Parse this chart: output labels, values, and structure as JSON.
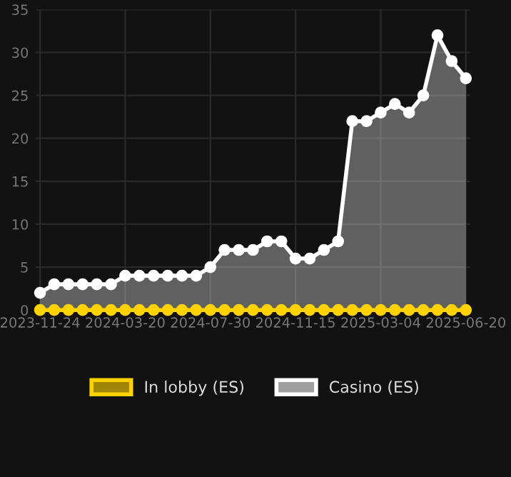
{
  "chart_data": {
    "type": "area",
    "categories": [
      "2023-11-24",
      null,
      null,
      null,
      null,
      null,
      "2024-03-20",
      null,
      null,
      null,
      null,
      null,
      "2024-07-30",
      null,
      null,
      null,
      null,
      null,
      "2024-11-15",
      null,
      null,
      null,
      null,
      null,
      "2025-03-04",
      null,
      null,
      null,
      null,
      null,
      "2025-06-20"
    ],
    "series": [
      {
        "name": "In lobby (ES)",
        "type": "line",
        "color": "#ffd200",
        "values": [
          0,
          0,
          0,
          0,
          0,
          0,
          0,
          0,
          0,
          0,
          0,
          0,
          0,
          0,
          0,
          0,
          0,
          0,
          0,
          0,
          0,
          0,
          0,
          0,
          0,
          0,
          0,
          0,
          0,
          0,
          0
        ]
      },
      {
        "name": "Casino (ES)",
        "color": "#ffffff",
        "values": [
          2,
          3,
          3,
          3,
          3,
          3,
          4,
          4,
          4,
          4,
          4,
          4,
          5,
          7,
          7,
          7,
          8,
          8,
          6,
          6,
          7,
          8,
          22,
          22,
          23,
          24,
          23,
          25,
          32,
          29,
          27
        ]
      }
    ],
    "ylim": [
      0,
      35
    ],
    "yticks": [
      0,
      5,
      10,
      15,
      20,
      25,
      30,
      35
    ],
    "grid": true,
    "legend": "bottom",
    "marker": "circle",
    "line_style": "solid"
  }
}
